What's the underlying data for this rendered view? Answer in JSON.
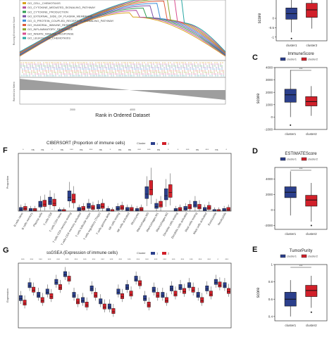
{
  "colors": {
    "cluster1": "#2b3f8c",
    "cluster2": "#d1202a",
    "gsea_base": "#9e9e9e"
  },
  "panel_letters": {
    "C": "C",
    "D": "D",
    "E": "E",
    "F": "F",
    "G": "G"
  },
  "gsea": {
    "y_label_top": "Running Enrichment Score",
    "y_label_bottom": "Ranked List Metric",
    "x_label": "Rank in Ordered Dataset",
    "x_ticks": [
      "2000",
      "4000"
    ],
    "legend": [
      {
        "name": "GO_CELL_CHEMOTAXIS",
        "color": "#d9a31e"
      },
      {
        "name": "GO_CYTOKINE_MEDIATED_SIGNALING_PATHWAY",
        "color": "#b24fa0"
      },
      {
        "name": "GO_CYTOKINE_PRODUCTION",
        "color": "#2e9e51"
      },
      {
        "name": "GO_EXTERNAL_SIDE_OF_PLASMA_MEMBRANE",
        "color": "#7b4fa6"
      },
      {
        "name": "GO_G_PROTEIN_COUPLED_RECEPTOR_SIGNALING_PATHWAY",
        "color": "#3c8fd6"
      },
      {
        "name": "GO_HUMORAL_IMMUNE_RESPONSE",
        "color": "#e05b3a"
      },
      {
        "name": "GO_INFLAMMATORY_RESPONSE",
        "color": "#8aa62e"
      },
      {
        "name": "GO_INNATE_IMMUNE_RESPONSE",
        "color": "#d94b8e"
      },
      {
        "name": "GO_LEUKOCYTE_CHEMOTAXIS",
        "color": "#27a6a2"
      }
    ]
  },
  "chart_data": [
    {
      "panel": "B (partial)",
      "type": "box",
      "title": "",
      "ylabel": "score",
      "ylim": [
        -1.2,
        1.2
      ],
      "y_ticks": [
        0,
        -0.5,
        -1
      ],
      "categories": [
        "cluster1",
        "cluster2"
      ],
      "boxes": [
        {
          "name": "cluster1",
          "q1": -0.05,
          "median": 0.25,
          "q3": 0.55,
          "whisker_low": -0.75,
          "whisker_high": 1.3,
          "outliers": [
            -1.08
          ]
        },
        {
          "name": "cluster2",
          "q1": 0.05,
          "median": 0.45,
          "q3": 0.8,
          "whisker_low": -0.55,
          "whisker_high": 1.3,
          "outliers": []
        }
      ]
    },
    {
      "panel": "C",
      "type": "box",
      "title": "ImmuneScore",
      "ylabel": "score",
      "ylim": [
        -1000,
        4000
      ],
      "y_ticks": [
        -1000,
        0,
        1000,
        2000,
        3000,
        4000
      ],
      "legend_title": "",
      "legend": [
        "cluster1",
        "cluster2"
      ],
      "categories": [
        "cluster1",
        "cluster2"
      ],
      "significance": "***",
      "boxes": [
        {
          "name": "cluster1",
          "q1": 1200,
          "median": 1800,
          "q3": 2250,
          "whisker_low": 0,
          "whisker_high": 3800,
          "outliers": [
            -650
          ]
        },
        {
          "name": "cluster2",
          "q1": 900,
          "median": 1250,
          "q3": 1650,
          "whisker_low": 100,
          "whisker_high": 2500,
          "outliers": []
        }
      ]
    },
    {
      "panel": "D",
      "type": "box",
      "title": "ESTIMATEScore",
      "ylabel": "",
      "ylim": [
        -2500,
        5500
      ],
      "y_ticks": [
        -2000,
        0,
        2000,
        4000
      ],
      "legend": [
        "cluster1",
        "cluster2"
      ],
      "categories": [
        "cluster1",
        "cluster2"
      ],
      "significance": "***",
      "boxes": [
        {
          "name": "cluster1",
          "q1": 1600,
          "median": 2300,
          "q3": 3000,
          "whisker_low": -700,
          "whisker_high": 5000,
          "outliers": []
        },
        {
          "name": "cluster2",
          "q1": 500,
          "median": 1300,
          "q3": 1900,
          "whisker_low": -1500,
          "whisker_high": 3500,
          "outliers": [
            -2000
          ]
        }
      ]
    },
    {
      "panel": "E",
      "type": "box",
      "title": "TumorPurity",
      "ylabel": "score",
      "ylim": [
        0.35,
        1.0
      ],
      "y_ticks": [
        0.4,
        0.6,
        0.8,
        1.0
      ],
      "legend": [
        "cluster1",
        "cluster2"
      ],
      "categories": [
        "cluster1",
        "cluster2"
      ],
      "significance": "***",
      "boxes": [
        {
          "name": "cluster1",
          "q1": 0.52,
          "median": 0.6,
          "q3": 0.68,
          "whisker_low": 0.4,
          "whisker_high": 0.82,
          "outliers": []
        },
        {
          "name": "cluster2",
          "q1": 0.63,
          "median": 0.7,
          "q3": 0.76,
          "whisker_low": 0.5,
          "whisker_high": 0.87,
          "outliers": [
            0.45
          ]
        }
      ]
    },
    {
      "panel": "F",
      "type": "box",
      "title": "CIBERSORT (Proportion of immune cells)",
      "ylabel": "Proportion",
      "ylim": [
        0,
        0.75
      ],
      "legend_title": "Cluster",
      "legend": [
        "1",
        "2"
      ],
      "categories": [
        "B cells naive",
        "B cells memory",
        "Plasma cells",
        "T cells CD8",
        "T cells CD4 naive",
        "T cells CD4 memory resting",
        "T cells CD4 memory activated",
        "T cells follicular helper",
        "T cells regulatory (Tregs)",
        "T cells gamma delta",
        "NK cells resting",
        "NK cells activated",
        "Monocytes",
        "Macrophages M0",
        "Macrophages M1",
        "Macrophages M2",
        "Dendritic cells resting",
        "Dendritic cells activated",
        "Mast cells resting",
        "Mast cells activated",
        "Eosinophils",
        "Neutrophils"
      ],
      "significance": [
        "*",
        "ns",
        "ns",
        "*",
        "ns",
        "***",
        "ns",
        "***",
        "ns",
        "*",
        "ns",
        "ns",
        "***",
        "***",
        "ns",
        "*",
        "*",
        "***",
        "ns",
        "***",
        "ns",
        "*"
      ],
      "series": [
        {
          "name": "1",
          "medians": [
            0.02,
            0.01,
            0.08,
            0.12,
            0.0,
            0.18,
            0.02,
            0.06,
            0.05,
            0.01,
            0.03,
            0.02,
            0.01,
            0.22,
            0.06,
            0.2,
            0.01,
            0.03,
            0.08,
            0.02,
            0.0,
            0.01
          ]
        },
        {
          "name": "2",
          "medians": [
            0.03,
            0.01,
            0.09,
            0.1,
            0.0,
            0.15,
            0.03,
            0.04,
            0.06,
            0.0,
            0.04,
            0.02,
            0.02,
            0.28,
            0.08,
            0.24,
            0.02,
            0.05,
            0.05,
            0.04,
            0.0,
            0.02
          ]
        }
      ]
    },
    {
      "panel": "G",
      "type": "box",
      "title": "ssGSEA (Expression of immune cells)",
      "ylabel": "Expression",
      "ylim": [
        -0.2,
        0.8
      ],
      "legend_title": "Cluster",
      "legend": [
        "1",
        "2"
      ],
      "significance": [
        "***",
        "***",
        "***",
        "***",
        "***",
        "***",
        "***",
        "***",
        "***",
        "***",
        "***",
        "***",
        "***",
        "***",
        "***",
        "***",
        "***",
        "***",
        "***",
        "***",
        "***",
        "***",
        "*",
        "***"
      ],
      "series": [
        {
          "name": "1",
          "medians": [
            0.25,
            0.45,
            0.3,
            0.35,
            0.5,
            0.62,
            0.3,
            0.22,
            0.4,
            0.2,
            0.12,
            0.35,
            0.42,
            0.55,
            0.25,
            0.38,
            0.3,
            0.4,
            0.42,
            0.45,
            0.3,
            0.4,
            0.5,
            0.45
          ]
        },
        {
          "name": "2",
          "medians": [
            0.18,
            0.38,
            0.22,
            0.28,
            0.42,
            0.55,
            0.2,
            0.15,
            0.3,
            0.12,
            0.05,
            0.28,
            0.32,
            0.48,
            0.15,
            0.3,
            0.22,
            0.32,
            0.36,
            0.38,
            0.22,
            0.32,
            0.46,
            0.36
          ]
        }
      ]
    }
  ]
}
